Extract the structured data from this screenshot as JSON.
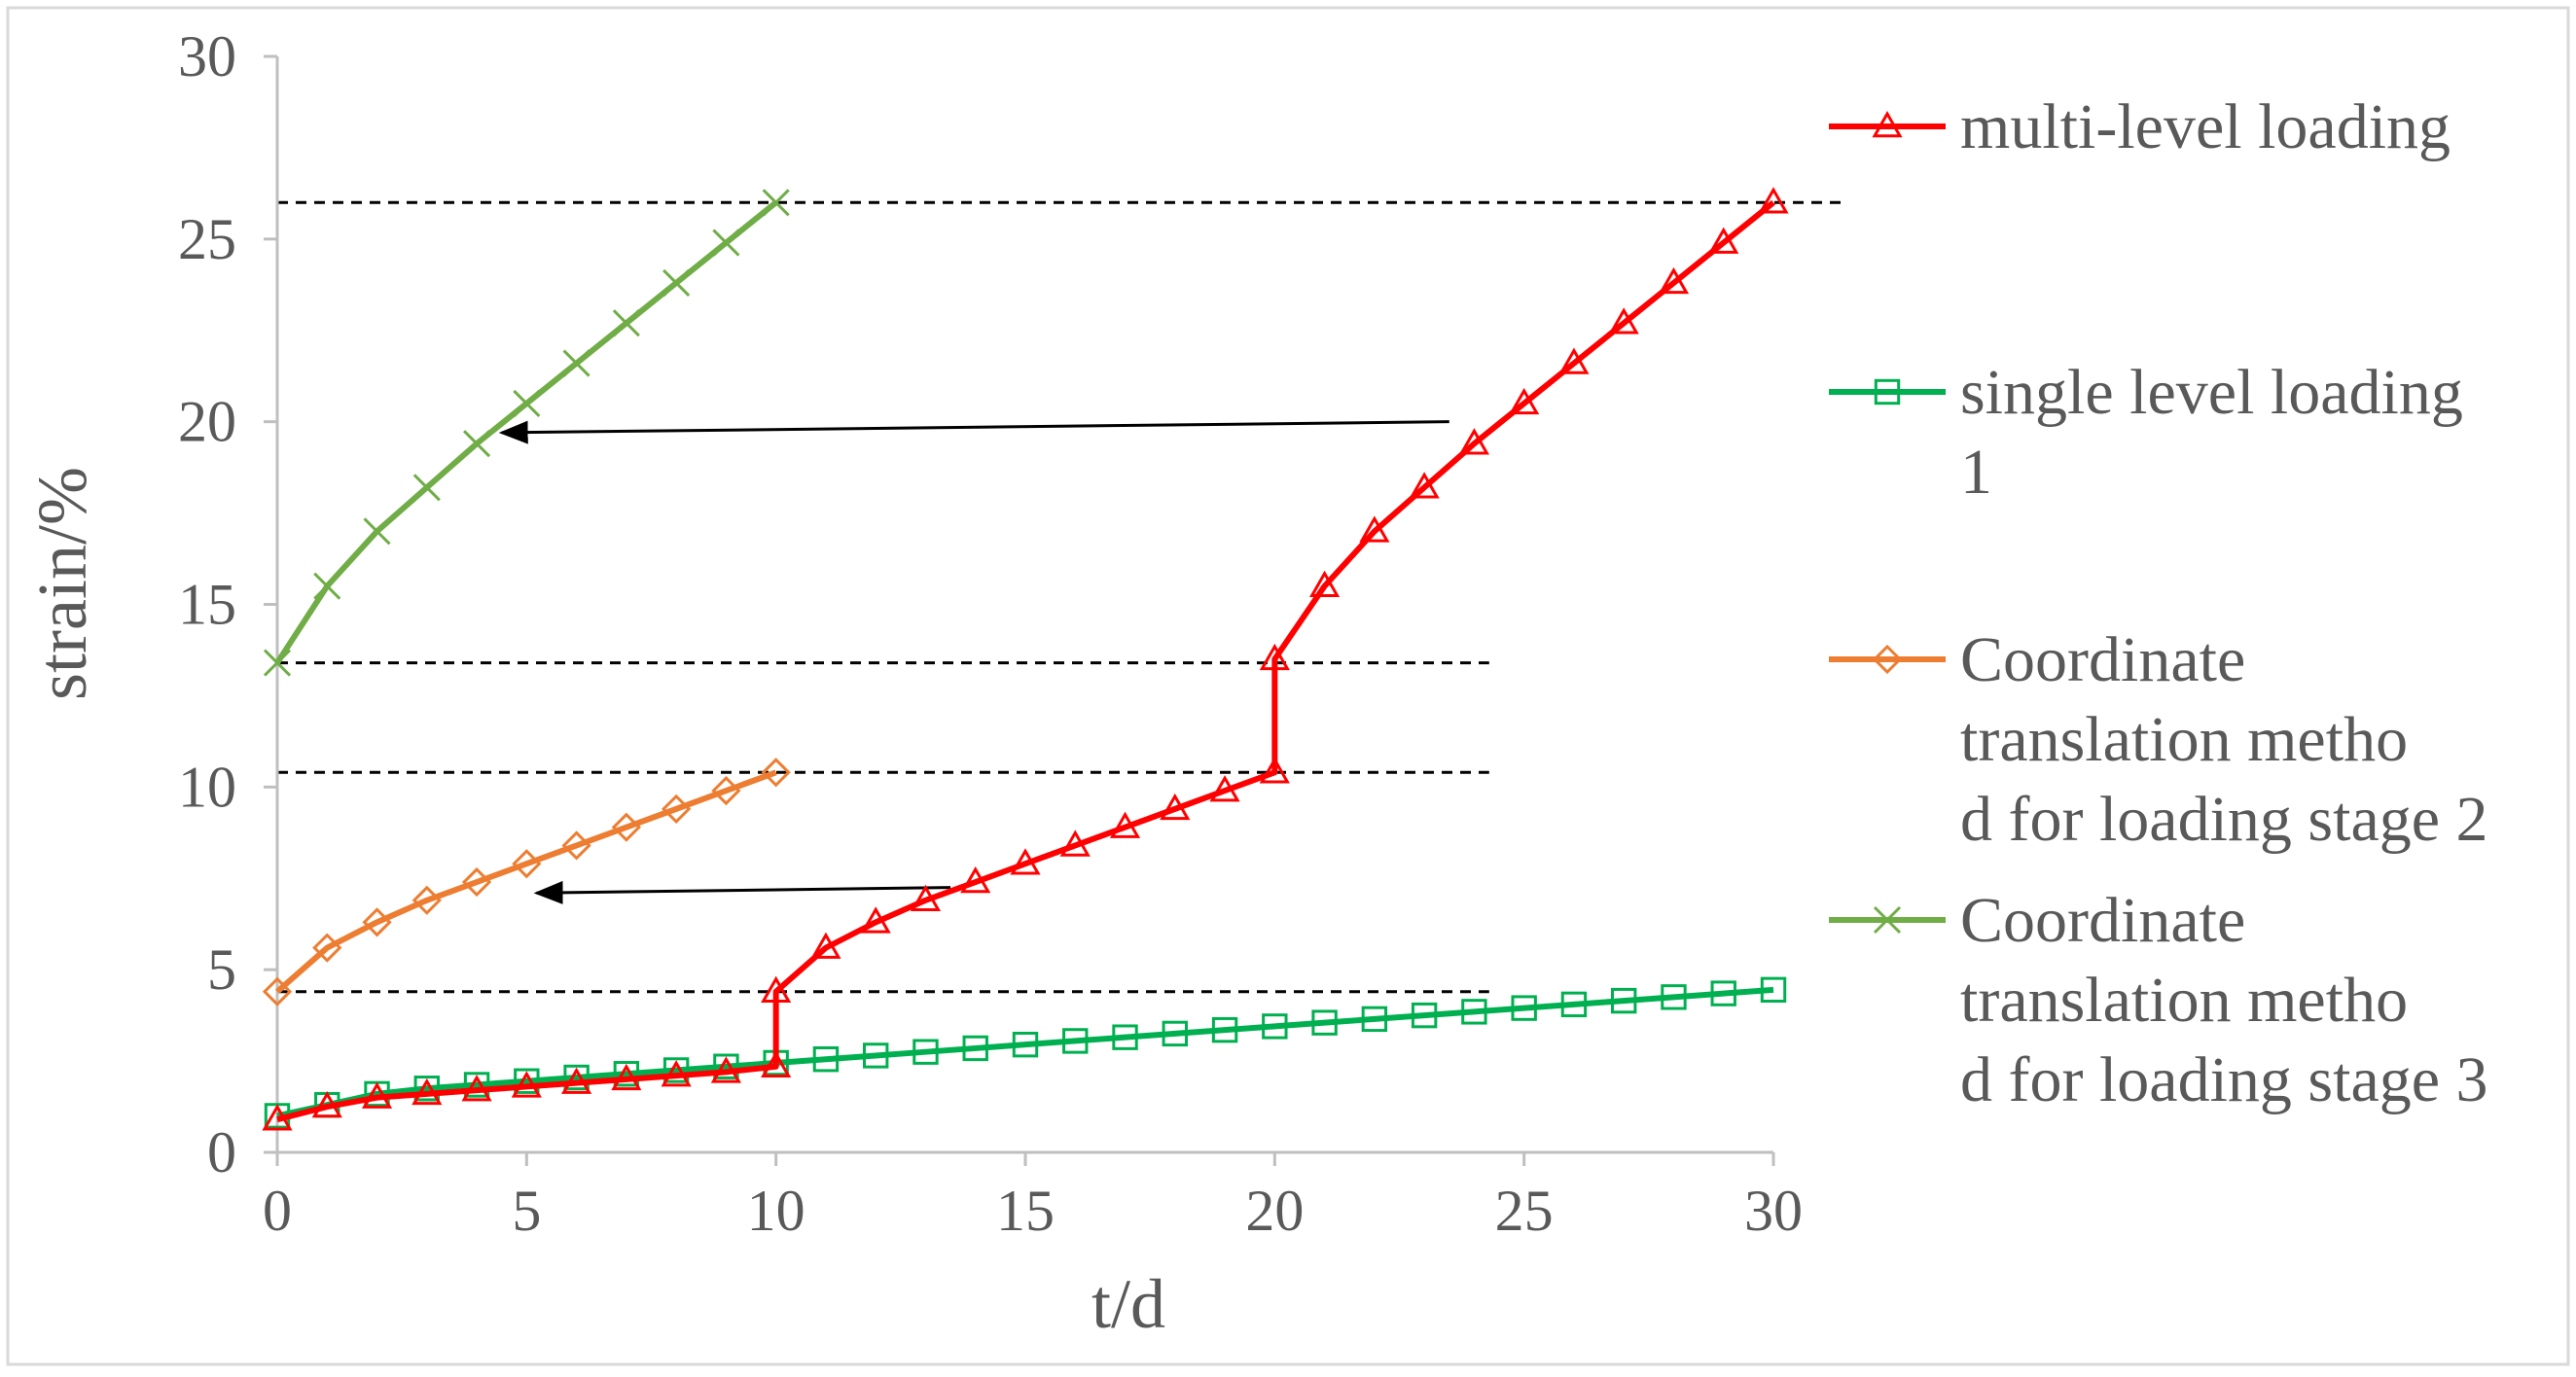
{
  "chart_data": {
    "type": "line",
    "title": "",
    "xlabel": "t/d",
    "ylabel": "strain/%",
    "xlim": [
      0,
      30
    ],
    "ylim": [
      0,
      30
    ],
    "xticks": [
      "0",
      "5",
      "10",
      "15",
      "20",
      "25",
      "30"
    ],
    "yticks": [
      "0",
      "5",
      "10",
      "15",
      "20",
      "25",
      "30"
    ],
    "grid": false,
    "legend_position": "right",
    "series": [
      {
        "name": "multi-level loading",
        "color": "#ff0000",
        "marker": "triangle",
        "points": [
          [
            0,
            0.9
          ],
          [
            1,
            1.25
          ],
          [
            2,
            1.5
          ],
          [
            3,
            1.6
          ],
          [
            4,
            1.7
          ],
          [
            5,
            1.8
          ],
          [
            6,
            1.9
          ],
          [
            7,
            2.0
          ],
          [
            8,
            2.1
          ],
          [
            9,
            2.2
          ],
          [
            10,
            2.35
          ],
          [
            10,
            4.4
          ],
          [
            11,
            5.6
          ],
          [
            12,
            6.3
          ],
          [
            13,
            6.9
          ],
          [
            14,
            7.4
          ],
          [
            15,
            7.9
          ],
          [
            16,
            8.4
          ],
          [
            17,
            8.9
          ],
          [
            18,
            9.4
          ],
          [
            19,
            9.9
          ],
          [
            20,
            10.4
          ],
          [
            20,
            13.5
          ],
          [
            21,
            15.5
          ],
          [
            22,
            17.0
          ],
          [
            23,
            18.2
          ],
          [
            24,
            19.4
          ],
          [
            25,
            20.5
          ],
          [
            26,
            21.6
          ],
          [
            27,
            22.7
          ],
          [
            28,
            23.8
          ],
          [
            29,
            24.9
          ],
          [
            30,
            26.0
          ]
        ]
      },
      {
        "name": "single level loading 1",
        "color": "#00b050",
        "marker": "square",
        "points": [
          [
            0,
            1.0
          ],
          [
            1,
            1.3
          ],
          [
            2,
            1.6
          ],
          [
            3,
            1.75
          ],
          [
            4,
            1.85
          ],
          [
            5,
            1.95
          ],
          [
            6,
            2.05
          ],
          [
            7,
            2.15
          ],
          [
            8,
            2.25
          ],
          [
            9,
            2.35
          ],
          [
            10,
            2.45
          ],
          [
            11,
            2.55
          ],
          [
            12,
            2.65
          ],
          [
            13,
            2.75
          ],
          [
            14,
            2.85
          ],
          [
            15,
            2.95
          ],
          [
            16,
            3.05
          ],
          [
            17,
            3.15
          ],
          [
            18,
            3.25
          ],
          [
            19,
            3.35
          ],
          [
            20,
            3.45
          ],
          [
            21,
            3.55
          ],
          [
            22,
            3.65
          ],
          [
            23,
            3.75
          ],
          [
            24,
            3.85
          ],
          [
            25,
            3.95
          ],
          [
            26,
            4.05
          ],
          [
            27,
            4.15
          ],
          [
            28,
            4.25
          ],
          [
            29,
            4.35
          ],
          [
            30,
            4.45
          ]
        ]
      },
      {
        "name": "Coordinate translation method for loading stage 2",
        "color": "#ed7d31",
        "marker": "diamond",
        "points": [
          [
            0,
            4.4
          ],
          [
            1,
            5.6
          ],
          [
            2,
            6.3
          ],
          [
            3,
            6.9
          ],
          [
            4,
            7.4
          ],
          [
            5,
            7.9
          ],
          [
            6,
            8.4
          ],
          [
            7,
            8.9
          ],
          [
            8,
            9.4
          ],
          [
            9,
            9.9
          ],
          [
            10,
            10.4
          ]
        ]
      },
      {
        "name": "Coordinate translation method for loading stage 3",
        "color": "#70ad47",
        "marker": "x",
        "points": [
          [
            0,
            13.4
          ],
          [
            1,
            15.5
          ],
          [
            2,
            17.0
          ],
          [
            3,
            18.2
          ],
          [
            4,
            19.4
          ],
          [
            5,
            20.5
          ],
          [
            6,
            21.6
          ],
          [
            7,
            22.7
          ],
          [
            8,
            23.8
          ],
          [
            9,
            24.9
          ],
          [
            10,
            26.0
          ]
        ]
      }
    ],
    "reference_lines": [
      {
        "y": 26.0,
        "x_from": 0,
        "x_to": 31.5,
        "style": "dashed"
      },
      {
        "y": 13.4,
        "x_from": 0,
        "x_to": 24.3,
        "style": "dashed"
      },
      {
        "y": 10.4,
        "x_from": 0,
        "x_to": 24.3,
        "style": "dashed"
      },
      {
        "y": 4.4,
        "x_from": 0,
        "x_to": 24.3,
        "style": "dashed"
      }
    ],
    "arrows": [
      {
        "from": [
          23.5,
          20.0
        ],
        "to": [
          4.5,
          19.7
        ]
      },
      {
        "from": [
          13.5,
          7.25
        ],
        "to": [
          5.2,
          7.1
        ]
      }
    ]
  }
}
